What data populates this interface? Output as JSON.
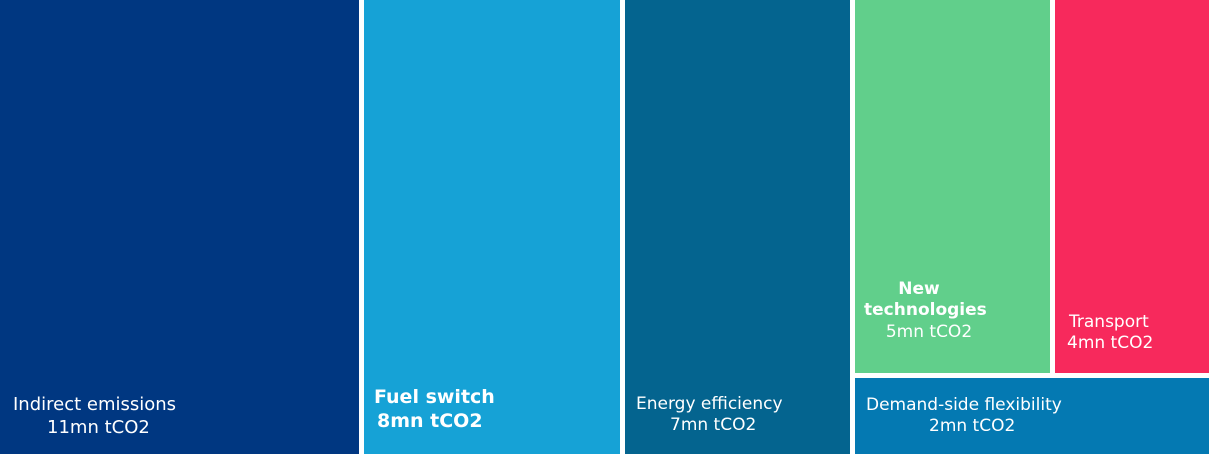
{
  "chart_data": {
    "type": "treemap",
    "unit": "mn tCO2",
    "items": [
      {
        "label": "Indirect emissions",
        "value": 11,
        "value_label": "11mn tCO2",
        "color": "#003781"
      },
      {
        "label": "Fuel switch",
        "value": 8,
        "value_label": "8mn tCO2",
        "color": "#16a2d6"
      },
      {
        "label": "Energy efficiency",
        "value": 7,
        "value_label": "7mn tCO2",
        "color": "#04648f"
      },
      {
        "label": "New technologies",
        "value": 5,
        "value_label": "5mn tCO2",
        "color": "#61cf8b"
      },
      {
        "label": "Transport",
        "value": 4,
        "value_label": "4mn tCO2",
        "color": "#f7295c"
      },
      {
        "label": "Demand-side flexibility",
        "value": 2,
        "value_label": "2mn tCO2",
        "color": "#0479b2"
      }
    ]
  }
}
